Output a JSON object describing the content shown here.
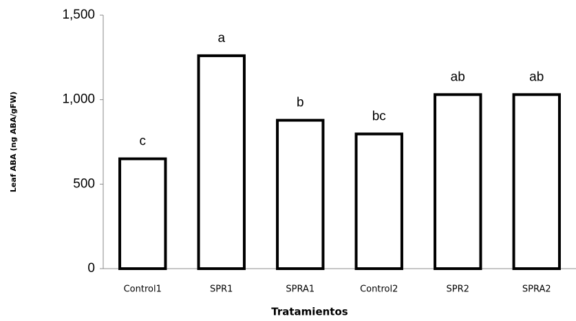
{
  "chart_data": {
    "type": "bar",
    "categories": [
      "Control1",
      "SPR1",
      "SPRA1",
      "Control2",
      "SPR2",
      "SPRA2"
    ],
    "values": [
      650,
      1260,
      878,
      797,
      1030,
      1030
    ],
    "annotations": [
      "c",
      "a",
      "b",
      "bc",
      "ab",
      "ab"
    ],
    "color": "#ffffff",
    "edge_color": "#000000",
    "ylim": [
      0,
      1500
    ],
    "yticks": [
      0,
      500,
      {
        "value": 1000,
        "label": "1,000"
      },
      {
        "value": 1500,
        "label": "1,500"
      }
    ],
    "ylabel": "Leaf ABA (ng ABA/gFW)",
    "xlabel": "Tratamientos",
    "grid": false
  }
}
